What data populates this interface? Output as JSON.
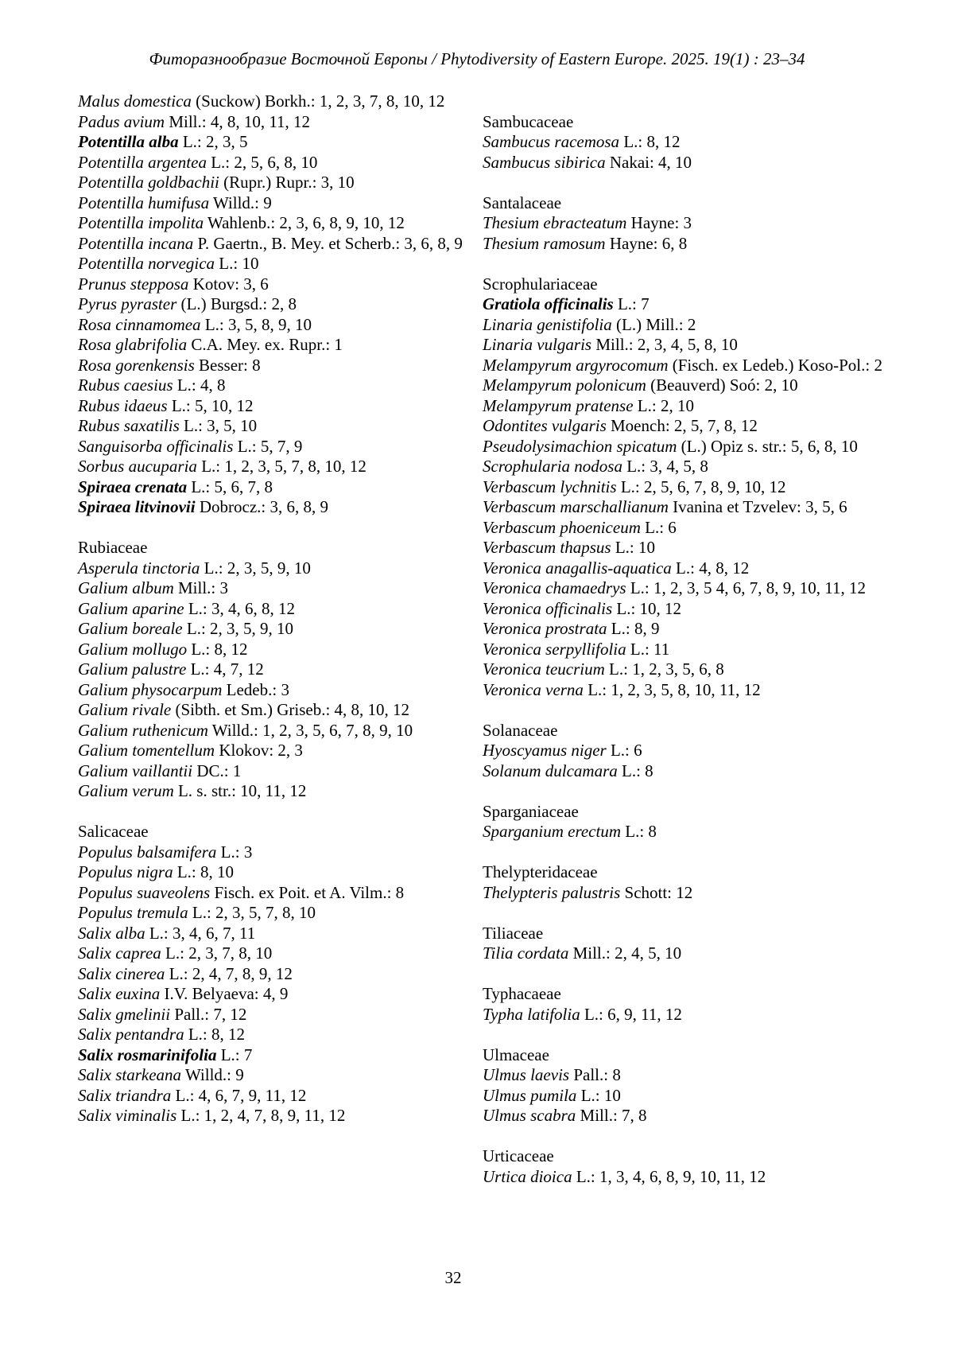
{
  "header": {
    "text": "Фиторазнообразие Восточной Европы / Phytodiversity of Eastern Europe. 2025. 19(1) : 23–34"
  },
  "page_number": "32",
  "columns": {
    "left": [
      {
        "family": null,
        "entries": [
          {
            "species": "Malus domestica",
            "rest": "(Suckow) Borkh.: 1, 2, 3, 7, 8, 10, 12"
          },
          {
            "species": "Padus avium",
            "rest": "Mill.: 4, 8, 10, 11, 12"
          },
          {
            "species": "Potentilla alba",
            "rest": "L.: 2, 3, 5",
            "bold": true
          },
          {
            "species": "Potentilla argentea",
            "rest": "L.: 2, 5, 6, 8, 10"
          },
          {
            "species": "Potentilla goldbachii",
            "rest": "(Rupr.) Rupr.: 3, 10"
          },
          {
            "species": "Potentilla humifusa",
            "rest": "Willd.: 9"
          },
          {
            "species": "Potentilla impolita",
            "rest": "Wahlenb.: 2, 3, 6, 8, 9, 10, 12"
          },
          {
            "species": "Potentilla incana",
            "rest": "P. Gaertn., B. Mey. et Scherb.: 3, 6, 8, 9"
          },
          {
            "species": "Potentilla norvegica",
            "rest": "L.: 10"
          },
          {
            "species": "Prunus stepposa",
            "rest": "Kotov: 3, 6"
          },
          {
            "species": "Pyrus pyraster",
            "rest": "(L.) Burgsd.: 2, 8"
          },
          {
            "species": "Rosa cinnamomea",
            "rest": "L.: 3, 5, 8, 9, 10"
          },
          {
            "species": "Rosa glabrifolia",
            "rest": "C.A. Mey. ex. Rupr.: 1"
          },
          {
            "species": "Rosa gorenkensis",
            "rest": "Besser: 8"
          },
          {
            "species": "Rubus caesius",
            "rest": "L.: 4, 8"
          },
          {
            "species": "Rubus idaeus",
            "rest": "L.: 5, 10, 12"
          },
          {
            "species": "Rubus saxatilis",
            "rest": "L.: 3, 5, 10"
          },
          {
            "species": "Sanguisorba officinalis",
            "rest": "L.: 5, 7, 9"
          },
          {
            "species": "Sorbus aucuparia",
            "rest": "L.: 1, 2, 3, 5, 7, 8, 10, 12"
          },
          {
            "species": "Spiraea crenata",
            "rest": "L.: 5, 6, 7, 8",
            "bold": true
          },
          {
            "species": "Spiraea litvinovii",
            "rest": "Dobrocz.: 3, 6, 8, 9",
            "bold": true
          }
        ]
      },
      {
        "family": "Rubiaceae",
        "entries": [
          {
            "species": "Asperula tinctoria",
            "rest": "L.: 2, 3, 5, 9, 10"
          },
          {
            "species": "Galium album",
            "rest": "Mill.: 3"
          },
          {
            "species": "Galium aparine",
            "rest": "L.: 3, 4, 6, 8, 12"
          },
          {
            "species": "Galium boreale",
            "rest": "L.: 2, 3, 5, 9, 10"
          },
          {
            "species": "Galium mollugo",
            "rest": "L.: 8, 12"
          },
          {
            "species": "Galium palustre",
            "rest": "L.: 4, 7, 12"
          },
          {
            "species": "Galium physocarpum",
            "rest": "Ledeb.: 3"
          },
          {
            "species": "Galium rivale",
            "rest": "(Sibth. et Sm.) Griseb.: 4, 8, 10, 12"
          },
          {
            "species": "Galium ruthenicum",
            "rest": "Willd.: 1, 2, 3, 5, 6, 7, 8, 9, 10"
          },
          {
            "species": "Galium tomentellum",
            "rest": "Klokov: 2, 3"
          },
          {
            "species": "Galium vaillantii",
            "rest": "DC.: 1"
          },
          {
            "species": "Galium verum",
            "rest": "L. s. str.: 10, 11, 12"
          }
        ]
      },
      {
        "family": "Salicaceae",
        "entries": [
          {
            "species": "Populus balsamifera",
            "rest": "L.: 3"
          },
          {
            "species": "Populus nigra",
            "rest": "L.: 8, 10"
          },
          {
            "species": "Populus suaveolens",
            "rest": "Fisch. ex Poit. et A. Vilm.: 8"
          },
          {
            "species": "Populus tremula",
            "rest": "L.: 2, 3, 5, 7, 8, 10"
          },
          {
            "species": "Salix alba",
            "rest": "L.: 3, 4, 6, 7, 11"
          },
          {
            "species": "Salix caprea",
            "rest": "L.: 2, 3, 7, 8, 10"
          },
          {
            "species": "Salix cinerea",
            "rest": "L.: 2, 4, 7, 8, 9, 12"
          },
          {
            "species": "Salix euxina",
            "rest": "I.V. Belyaeva: 4, 9"
          },
          {
            "species": "Salix gmelinii",
            "rest": "Pall.: 7, 12"
          },
          {
            "species": "Salix pentandra",
            "rest": "L.: 8, 12"
          },
          {
            "species": "Salix rosmarinifolia",
            "rest": "L.: 7",
            "bold": true
          },
          {
            "species": "Salix starkeana",
            "rest": "Willd.: 9"
          },
          {
            "species": "Salix triandra",
            "rest": "L.: 4, 6, 7, 9, 11, 12"
          },
          {
            "species": "Salix viminalis",
            "rest": "L.: 1, 2, 4, 7, 8, 9, 11, 12"
          }
        ]
      }
    ],
    "right": [
      {
        "family": "Sambucaceae",
        "entries": [
          {
            "species": "Sambucus racemosa",
            "rest": "L.: 8, 12"
          },
          {
            "species": "Sambucus sibirica",
            "rest": "Nakai: 4, 10"
          }
        ]
      },
      {
        "family": "Santalaceae",
        "entries": [
          {
            "species": "Thesium ebracteatum",
            "rest": "Hayne: 3"
          },
          {
            "species": "Thesium ramosum",
            "rest": "Hayne: 6, 8"
          }
        ]
      },
      {
        "family": "Scrophulariaceae",
        "entries": [
          {
            "species": "Gratiola officinalis",
            "rest": "L.: 7",
            "bold": true
          },
          {
            "species": "Linaria genistifolia",
            "rest": "(L.) Mill.: 2"
          },
          {
            "species": "Linaria vulgaris",
            "rest": "Mill.: 2, 3, 4, 5, 8, 10"
          },
          {
            "species": "Melampyrum argyrocomum",
            "rest": "(Fisch. ex Ledeb.) Koso-Pol.: 2"
          },
          {
            "species": "Melampyrum polonicum",
            "rest": "(Beauverd) Soó: 2, 10"
          },
          {
            "species": "Melampyrum pratense",
            "rest": "L.: 2, 10"
          },
          {
            "species": "Odontites vulgaris",
            "rest": "Moench: 2, 5, 7, 8, 12"
          },
          {
            "species": "Pseudolysimachion spicatum",
            "rest": "(L.) Opiz s. str.: 5, 6, 8, 10"
          },
          {
            "species": "Scrophularia nodosa",
            "rest": "L.: 3, 4, 5, 8"
          },
          {
            "species": "Verbascum lychnitis",
            "rest": "L.: 2, 5, 6, 7, 8, 9, 10, 12"
          },
          {
            "species": "Verbascum marschallianum",
            "rest": "Ivanina et Tzvelev: 3, 5, 6"
          },
          {
            "species": "Verbascum phoeniceum",
            "rest": "L.: 6"
          },
          {
            "species": "Verbascum thapsus",
            "rest": "L.: 10"
          },
          {
            "species": "Veronica anagallis-aquatica",
            "rest": "L.: 4, 8, 12"
          },
          {
            "species": "Veronica chamaedrys",
            "rest": "L.: 1, 2, 3, 5 4, 6, 7, 8, 9, 10, 11, 12"
          },
          {
            "species": "Veronica officinalis",
            "rest": "L.: 10, 12"
          },
          {
            "species": "Veronica prostrata",
            "rest": "L.: 8, 9"
          },
          {
            "species": "Veronica serpyllifolia",
            "rest": "L.: 11"
          },
          {
            "species": "Veronica teucrium",
            "rest": "L.: 1, 2, 3, 5, 6, 8"
          },
          {
            "species": "Veronica verna",
            "rest": "L.: 1, 2, 3, 5, 8, 10, 11, 12"
          }
        ]
      },
      {
        "family": "Solanaceae",
        "entries": [
          {
            "species": "Hyoscyamus niger",
            "rest": "L.: 6"
          },
          {
            "species": "Solanum dulcamara",
            "rest": "L.: 8"
          }
        ]
      },
      {
        "family": "Sparganiaceae",
        "entries": [
          {
            "species": "Sparganium erectum",
            "rest": "L.: 8"
          }
        ]
      },
      {
        "family": "Thelypteridaceae",
        "entries": [
          {
            "species": "Thelypteris palustris",
            "rest": "Schott: 12"
          }
        ]
      },
      {
        "family": "Tiliaceae",
        "entries": [
          {
            "species": "Tilia cordata",
            "rest": "Mill.: 2, 4, 5, 10"
          }
        ]
      },
      {
        "family": "Typhacaeae",
        "entries": [
          {
            "species": "Typha latifolia",
            "rest": "L.: 6, 9, 11, 12"
          }
        ]
      },
      {
        "family": "Ulmaceae",
        "entries": [
          {
            "species": "Ulmus laevis",
            "rest": "Pall.: 8"
          },
          {
            "species": "Ulmus pumila",
            "rest": "L.: 10"
          },
          {
            "species": "Ulmus scabra",
            "rest": "Mill.: 7, 8"
          }
        ]
      },
      {
        "family": "Urticaceae",
        "entries": [
          {
            "species": "Urtica dioica",
            "rest": "L.: 1, 3, 4, 6, 8, 9, 10, 11, 12"
          }
        ]
      }
    ]
  }
}
